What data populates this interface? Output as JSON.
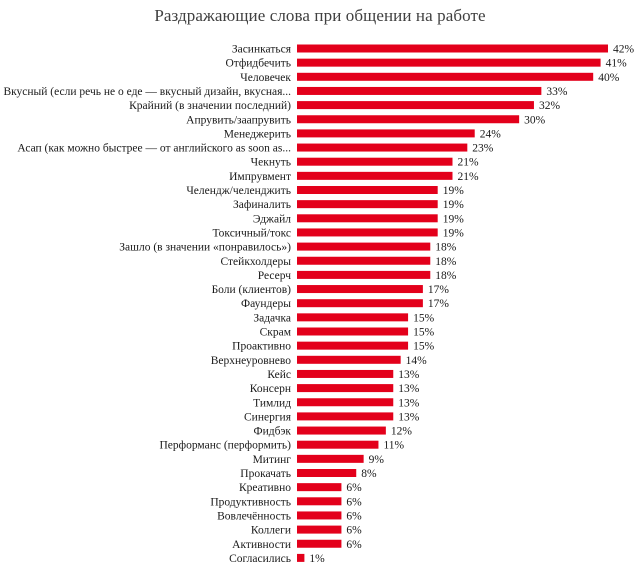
{
  "chart_data": {
    "type": "bar",
    "orientation": "horizontal",
    "title": "Раздражающие слова при общении на работе",
    "value_suffix": "%",
    "bar_color": "#e3001b",
    "categories": [
      "Засинкаться",
      "Отфидбечить",
      "Человечек",
      "Вкусный (если речь не о еде — вкусный дизайн, вкусная...",
      "Крайний (в значении последний)",
      "Апрувить/заапрувить",
      "Менеджерить",
      "Асап (как можно быстрее — от английского as soon as...",
      "Чекнуть",
      "Импрувмент",
      "Челендж/челенджить",
      "Зафиналить",
      "Эджайл",
      "Токсичный/токс",
      "Зашло (в значении «понравилось»)",
      "Стейкхолдеры",
      "Ресерч",
      "Боли (клиентов)",
      "Фаундеры",
      "Задачка",
      "Скрам",
      "Проактивно",
      "Верхнеуровнево",
      "Кейс",
      "Консерн",
      "Тимлид",
      "Синергия",
      "Фидбэк",
      "Перформанс (перформить)",
      "Митинг",
      "Прокачать",
      "Креативно",
      "Продуктивность",
      "Вовлечённость",
      "Коллеги",
      "Активности",
      "Согласились"
    ],
    "values": [
      42,
      41,
      40,
      33,
      32,
      30,
      24,
      23,
      21,
      21,
      19,
      19,
      19,
      19,
      18,
      18,
      18,
      17,
      17,
      15,
      15,
      15,
      14,
      13,
      13,
      13,
      13,
      12,
      11,
      9,
      8,
      6,
      6,
      6,
      6,
      6,
      1
    ],
    "xlim": [
      0,
      42
    ],
    "grid": false,
    "legend": "none"
  }
}
